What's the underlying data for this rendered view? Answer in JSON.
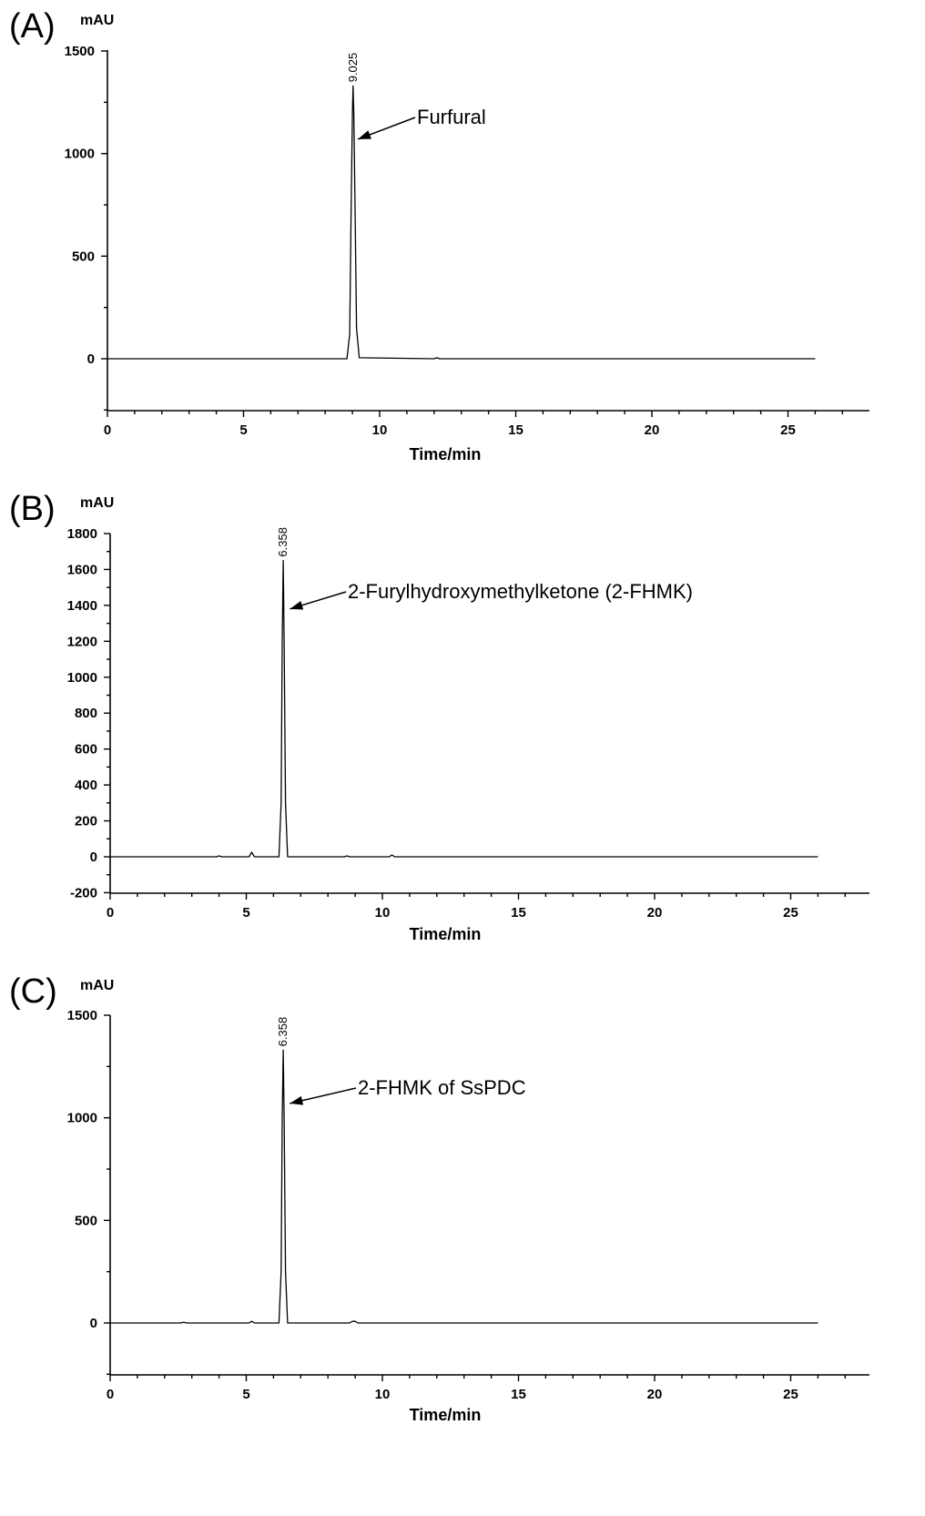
{
  "chart_data": [
    {
      "type": "line",
      "panel_label": "(A)",
      "ylabel": "mAU",
      "xlabel": "Time/min",
      "xlim": [
        0,
        28
      ],
      "ylim": [
        -250,
        1500
      ],
      "xticks": [
        0,
        5,
        10,
        15,
        20,
        25
      ],
      "yticks": [
        0,
        500,
        1000,
        1500
      ],
      "grid": false,
      "series": [
        {
          "x": [
            0,
            8.8,
            8.9,
            8.95,
            9.0,
            9.025,
            9.05,
            9.1,
            9.15,
            9.25,
            12.0,
            12.1,
            12.2,
            26
          ],
          "y": [
            0,
            0,
            120,
            700,
            1200,
            1330,
            1200,
            700,
            150,
            5,
            0,
            5,
            0,
            0
          ]
        }
      ],
      "peak_labels": [
        {
          "x": 9.025,
          "y": 1330,
          "text": "9.025"
        }
      ],
      "annotations": [
        {
          "text": "Furfural",
          "x": 9.2,
          "y": 1070
        }
      ]
    },
    {
      "type": "line",
      "panel_label": "(B)",
      "ylabel": "mAU",
      "xlabel": "Time/min",
      "xlim": [
        0,
        28
      ],
      "ylim": [
        -200,
        1800
      ],
      "xticks": [
        0,
        5,
        10,
        15,
        20,
        25
      ],
      "yticks": [
        -200,
        0,
        200,
        400,
        600,
        800,
        1000,
        1200,
        1400,
        1600,
        1800
      ],
      "grid": false,
      "series": [
        {
          "x": [
            0,
            3.9,
            4.0,
            4.1,
            5.1,
            5.2,
            5.3,
            6.2,
            6.28,
            6.32,
            6.358,
            6.39,
            6.44,
            6.52,
            8.6,
            8.7,
            8.8,
            10.25,
            10.35,
            10.45,
            26
          ],
          "y": [
            0,
            0,
            5,
            0,
            0,
            25,
            0,
            0,
            300,
            1200,
            1650,
            1200,
            300,
            0,
            0,
            5,
            0,
            0,
            10,
            0,
            0
          ]
        }
      ],
      "peak_labels": [
        {
          "x": 6.358,
          "y": 1650,
          "text": "6.358"
        }
      ],
      "annotations": [
        {
          "text": "2-Furylhydroxymethylketone (2-FHMK)",
          "x": 6.6,
          "y": 1380
        }
      ]
    },
    {
      "type": "line",
      "panel_label": "(C)",
      "ylabel": "mAU",
      "xlabel": "Time/min",
      "xlim": [
        0,
        28
      ],
      "ylim": [
        -250,
        1500
      ],
      "xticks": [
        0,
        5,
        10,
        15,
        20,
        25
      ],
      "yticks": [
        0,
        500,
        1000,
        1500
      ],
      "grid": false,
      "series": [
        {
          "x": [
            0,
            2.6,
            2.7,
            2.8,
            5.1,
            5.2,
            5.3,
            6.2,
            6.28,
            6.32,
            6.358,
            6.39,
            6.44,
            6.52,
            8.8,
            8.9,
            9.0,
            9.1,
            26
          ],
          "y": [
            0,
            0,
            4,
            0,
            0,
            8,
            0,
            0,
            250,
            1000,
            1330,
            1000,
            250,
            0,
            0,
            8,
            8,
            0,
            0
          ]
        }
      ],
      "peak_labels": [
        {
          "x": 6.358,
          "y": 1330,
          "text": "6.358"
        }
      ],
      "annotations": [
        {
          "text": "2-FHMK of SsPDC",
          "x": 6.6,
          "y": 1070
        }
      ]
    }
  ]
}
